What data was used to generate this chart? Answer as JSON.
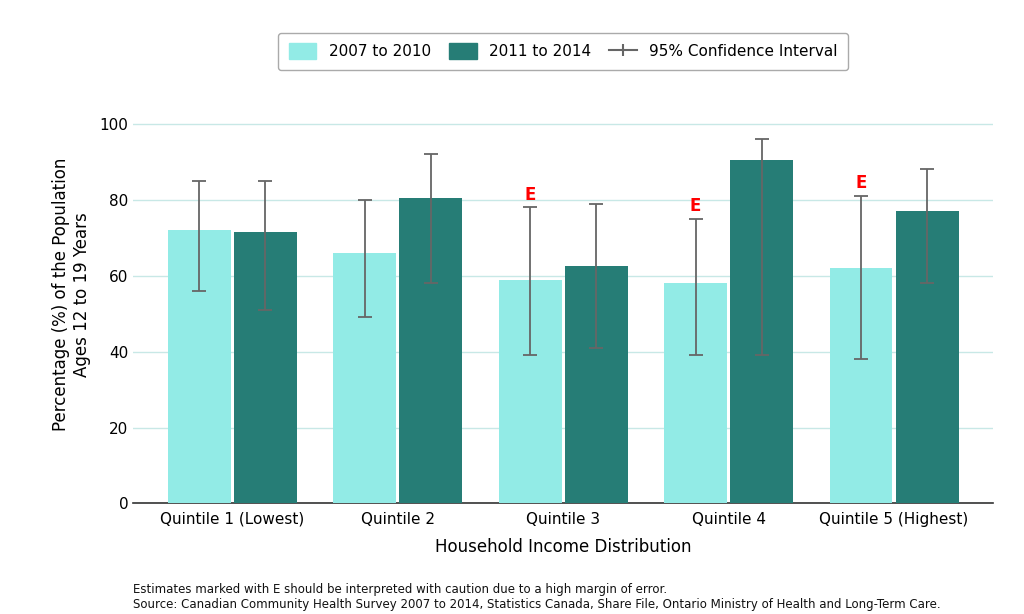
{
  "categories": [
    "Quintile 1 (Lowest)",
    "Quintile 2",
    "Quintile 3",
    "Quintile 4",
    "Quintile 5 (Highest)"
  ],
  "series_2007_2010": [
    72,
    66,
    59,
    58,
    62
  ],
  "series_2011_2014": [
    71.5,
    80.5,
    62.5,
    90.5,
    77
  ],
  "ci_2007_2010_low": [
    56,
    49,
    39,
    39,
    38
  ],
  "ci_2007_2010_high": [
    85,
    80,
    78,
    75,
    81
  ],
  "ci_2011_2014_low": [
    51,
    58,
    41,
    39,
    58
  ],
  "ci_2011_2014_high": [
    85,
    92,
    79,
    96,
    88
  ],
  "e_marks_2007_2010": [
    false,
    false,
    true,
    true,
    true
  ],
  "e_marks_2011_2014": [
    false,
    false,
    false,
    false,
    false
  ],
  "color_2007_2010": "#92EBE6",
  "color_2011_2014": "#267D76",
  "color_ci": "#666666",
  "xlabel": "Household Income Distribution",
  "ylabel": "Percentage (%) of the Population\nAges 12 to 19 Years",
  "ylim": [
    0,
    110
  ],
  "yticks": [
    0,
    20,
    40,
    60,
    80,
    100
  ],
  "legend_label_1": "2007 to 2010",
  "legend_label_2": "2011 to 2014",
  "legend_label_ci": "95% Confidence Interval",
  "footnote_line1": "Estimates marked with E should be interpreted with caution due to a high margin of error.",
  "footnote_line2": "Source: Canadian Community Health Survey 2007 to 2014, Statistics Canada, Share File, Ontario Ministry of Health and Long-Term Care.",
  "background_color": "#ffffff",
  "grid_color": "#c8e8e6",
  "axis_fontsize": 12,
  "tick_fontsize": 11,
  "legend_fontsize": 11
}
